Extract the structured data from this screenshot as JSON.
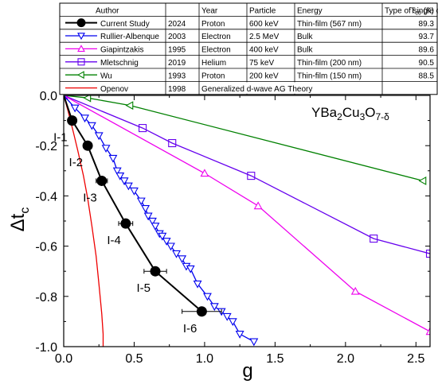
{
  "chart_data": {
    "type": "line",
    "title": "",
    "xlabel": "g",
    "ylabel_main": "Δt",
    "ylabel_sub": "c",
    "xlim": [
      0.0,
      2.6
    ],
    "ylim": [
      -1.0,
      0.0
    ],
    "x_ticks": [
      "0.0",
      "0.5",
      "1.0",
      "1.5",
      "2.0",
      "2.5"
    ],
    "y_ticks": [
      "0.0",
      "-0.2",
      "-0.4",
      "-0.6",
      "-0.8",
      "-1.0"
    ],
    "x_tick_values": [
      0.0,
      0.5,
      1.0,
      1.5,
      2.0,
      2.5
    ],
    "y_tick_values": [
      0.0,
      -0.2,
      -0.4,
      -0.6,
      -0.8,
      -1.0
    ],
    "grid": false,
    "annotation": {
      "parts": [
        {
          "t": "YBa",
          "s": "normal"
        },
        {
          "t": "2",
          "s": "sub"
        },
        {
          "t": "Cu",
          "s": "normal"
        },
        {
          "t": "3",
          "s": "sub"
        },
        {
          "t": "O",
          "s": "normal"
        },
        {
          "t": "7-δ",
          "s": "sub"
        }
      ]
    },
    "legend_table": {
      "headers": [
        "Author",
        "Year",
        "Particle",
        "Energy",
        "Type of single crystals"
      ],
      "tc_header_main": "T",
      "tc_header_sub": "c0",
      "tc_header_unit": " (K)",
      "rows": [
        {
          "author": "Current Study",
          "year": "2024",
          "particle": "Proton",
          "energy": "600 keV",
          "type": "Thin-film (567 nm)",
          "tc": "89.3"
        },
        {
          "author": "Rullier-Albenque",
          "year": "2003",
          "particle": "Electron",
          "energy": "2.5 MeV",
          "type": "Bulk",
          "tc": "93.7"
        },
        {
          "author": "Giapintzakis",
          "year": "1995",
          "particle": "Electron",
          "energy": "400 keV",
          "type": "Bulk",
          "tc": "89.6"
        },
        {
          "author": "Mletschnig",
          "year": "2019",
          "particle": "Helium",
          "energy": "75 keV",
          "type": "Thin-film (200 nm)",
          "tc": "90.5"
        },
        {
          "author": "Wu",
          "year": "1993",
          "particle": "Proton",
          "energy": "200 keV",
          "type": "Thin-film (150 nm)",
          "tc": "88.5"
        },
        {
          "author": "Openov",
          "year": "1998",
          "particle": "Generalized d-wave AG Theory",
          "energy": "",
          "type": "",
          "tc": ""
        }
      ]
    },
    "series": [
      {
        "name": "Current Study",
        "color": "#000000",
        "marker": "circle-filled",
        "x": [
          0.0,
          0.06,
          0.17,
          0.27,
          0.44,
          0.65,
          0.98
        ],
        "y": [
          0.0,
          -0.1,
          -0.2,
          -0.34,
          -0.51,
          -0.7,
          -0.86
        ],
        "xerr": [
          0.0,
          0.02,
          0.03,
          0.04,
          0.05,
          0.08,
          0.14
        ],
        "labels": [
          "",
          "I-1",
          "I-2",
          "I-3",
          "I-4",
          "I-5",
          "I-6"
        ]
      },
      {
        "name": "Rullier-Albenque",
        "color": "#0000ee",
        "marker": "triangle-down-open",
        "x": [
          0.0,
          0.08,
          0.15,
          0.2,
          0.25,
          0.3,
          0.35,
          0.38,
          0.4,
          0.43,
          0.46,
          0.5,
          0.55,
          0.58,
          0.6,
          0.63,
          0.65,
          0.68,
          0.7,
          0.73,
          0.76,
          0.8,
          0.84,
          0.87,
          0.9,
          0.95,
          1.02,
          1.07,
          1.12,
          1.16,
          1.2,
          1.25,
          1.35
        ],
        "y": [
          0.0,
          -0.05,
          -0.09,
          -0.12,
          -0.16,
          -0.21,
          -0.25,
          -0.3,
          -0.32,
          -0.34,
          -0.36,
          -0.38,
          -0.42,
          -0.45,
          -0.48,
          -0.5,
          -0.52,
          -0.55,
          -0.56,
          -0.58,
          -0.6,
          -0.63,
          -0.65,
          -0.68,
          -0.69,
          -0.75,
          -0.8,
          -0.84,
          -0.86,
          -0.88,
          -0.9,
          -0.95,
          -0.98
        ]
      },
      {
        "name": "Giapintzakis",
        "color": "#ee00ee",
        "marker": "triangle-up-open",
        "x": [
          0.0,
          1.0,
          1.38,
          2.07,
          2.6
        ],
        "y": [
          0.0,
          -0.31,
          -0.44,
          -0.78,
          -0.94
        ]
      },
      {
        "name": "Mletschnig",
        "color": "#6600ee",
        "marker": "square-open",
        "x": [
          0.0,
          0.56,
          0.77,
          1.33,
          2.2,
          2.6
        ],
        "y": [
          0.0,
          -0.13,
          -0.19,
          -0.32,
          -0.57,
          -0.63
        ]
      },
      {
        "name": "Wu",
        "color": "#008000",
        "marker": "triangle-left-open",
        "x": [
          0.0,
          0.17,
          0.47,
          2.55
        ],
        "y": [
          0.0,
          -0.01,
          -0.04,
          -0.34
        ]
      },
      {
        "name": "Openov",
        "color": "#ee0000",
        "marker": "none",
        "x": [
          0.0,
          0.03,
          0.07,
          0.1,
          0.14,
          0.17,
          0.2,
          0.23,
          0.25,
          0.27,
          0.28,
          0.28
        ],
        "y": [
          0.0,
          -0.06,
          -0.15,
          -0.22,
          -0.32,
          -0.41,
          -0.52,
          -0.64,
          -0.75,
          -0.87,
          -0.95,
          -1.0
        ]
      }
    ]
  }
}
